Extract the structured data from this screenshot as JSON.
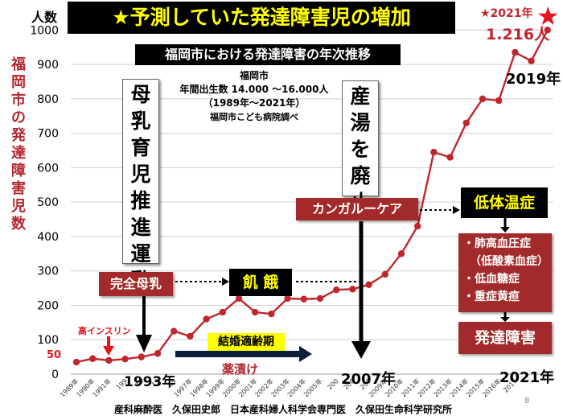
{
  "title": "★予測していた発達障害児の増加",
  "subtitle": "福岡市における発達障害の年次推移",
  "info": {
    "line1": "福岡市",
    "line2": "年間出生数 14.000 〜16.000人",
    "line3": "（1989年〜2021年）",
    "line4": "福岡市こども病院調べ"
  },
  "y_unit": "人数",
  "y_axis_title": "福岡市の発達障害児数",
  "boxes": {
    "breastfeeding_campaign": "母乳育児推進運動",
    "abolish_bathing": "産湯を廃止",
    "kangaroo": "カンガルーケア",
    "complete_breastfeeding": "完全母乳",
    "starvation": "飢 餓",
    "hypothermia": "低体温症",
    "complications": [
      "・肺高血圧症",
      "（低酸素血症）",
      "・低血糖症",
      "・重症黄疸"
    ],
    "dev_disorder": "発達障害",
    "marriage_age": "結婚適齢期",
    "drug_soaked": "薬漬け",
    "high_insulin": "高インスリン"
  },
  "year_marks": {
    "y1993": "1993年",
    "y2007": "2007年",
    "y2019": "2019年",
    "y2021": "2021年",
    "star_year": "★2021年",
    "star_value": "1.216人"
  },
  "annotations": {
    "fifty": "50"
  },
  "footer": "産科麻酔医　久保田史郎　日本産科婦人科学会専門医　久保田生命科学研究所",
  "page_number": "8",
  "colors": {
    "line": "#c0262c",
    "title_text": "#ffff00",
    "maroon": "#a32a2a",
    "axis_title": "#b2282e"
  },
  "chart_data": {
    "type": "line",
    "title": "福岡市における発達障害の年次推移",
    "ylabel": "福岡市の発達障害児数",
    "ylim": [
      0,
      1000
    ],
    "yticks": [
      0,
      100,
      200,
      300,
      400,
      500,
      600,
      700,
      800,
      900,
      1000
    ],
    "grid": true,
    "x": [
      "1989年",
      "1990年",
      "1991年",
      "1992年",
      "1993年",
      "1994年",
      "1995年",
      "1996年",
      "1997年",
      "1998年",
      "1999年",
      "2000年",
      "2001年",
      "2002年",
      "2003年",
      "2004年",
      "2005年",
      "2006年",
      "2007年",
      "2008年",
      "2009年",
      "2010年",
      "2011年",
      "2012年",
      "2013年",
      "2014年",
      "2015年",
      "2016年",
      "2017年",
      "2018年",
      "2019年",
      "2020年",
      "2021年"
    ],
    "xtick_labels": [
      "1989年",
      "1990年",
      "1991年",
      "199",
      "19",
      "19",
      "19",
      "1997年",
      "1998年",
      "1999年",
      "2000年",
      "2001年",
      "2002年",
      "2003年",
      "2004年",
      "2005年",
      "200",
      "200",
      "200",
      "2009年",
      "2010年",
      "2011年",
      "2012年",
      "2013年",
      "2014年",
      "2015年",
      "2016年",
      "2017",
      "",
      ""
    ],
    "series": [
      {
        "x": [
          "1989年",
          "1990年",
          "1991年",
          "1992年",
          "1993年",
          "1994年",
          "1995年",
          "1996年",
          "1997年",
          "1998年",
          "1999年",
          "2000年",
          "2001年",
          "2002年",
          "2003年",
          "2004年",
          "2005年",
          "2006年",
          "2007年",
          "2008年",
          "2009年",
          "2010年",
          "2011年",
          "2012年",
          "2013年",
          "2014年",
          "2015年",
          "2016年",
          "2017年",
          "2018年"
        ],
        "values": [
          35,
          45,
          40,
          44,
          50,
          60,
          125,
          110,
          160,
          180,
          220,
          180,
          175,
          220,
          218,
          220,
          245,
          247,
          260,
          290,
          350,
          430,
          645,
          630,
          730,
          800,
          795,
          935,
          910,
          1000
        ]
      }
    ]
  }
}
